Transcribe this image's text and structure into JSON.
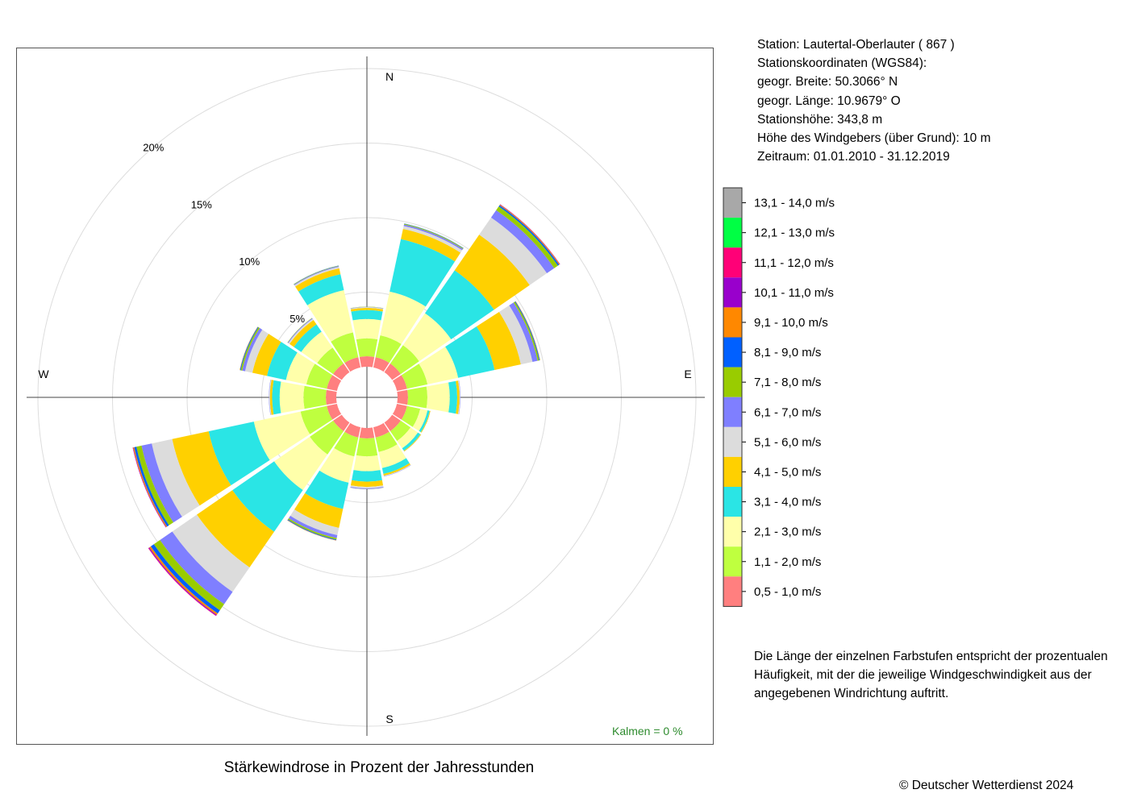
{
  "station": {
    "line1": "Station:  Lautertal-Oberlauter  ( 867 )",
    "line2": "Stationskoordinaten (WGS84):",
    "line3": "geogr. Breite: 50.3066° N",
    "line4": "geogr. Länge: 10.9679° O",
    "line5": "Stationshöhe: 343,8 m",
    "line6": "Höhe des Windgebers (über Grund): 10 m",
    "line7": "Zeitraum: 01.01.2010 - 31.12.2019"
  },
  "note": {
    "line1": "Die Länge der einzelnen Farbstufen entspricht der prozentualen",
    "line2": "Häufigkeit, mit der die jeweilige Windgeschwindigkeit aus der",
    "line3": "angegebenen Windrichtung auftritt."
  },
  "title": "Stärkewindrose in Prozent der Jahresstunden",
  "copyright": "© Deutscher Wetterdienst  2024",
  "kalmen": "Kalmen  =  0 %",
  "chart_data": {
    "type": "wind-rose",
    "title": "Stärkewindrose in Prozent der Jahresstunden",
    "directions": [
      "N",
      "NNE",
      "NE",
      "ENE",
      "E",
      "ESE",
      "SE",
      "SSE",
      "S",
      "SSW",
      "SW",
      "WSW",
      "W",
      "WNW",
      "NW",
      "NNW"
    ],
    "compass_labels": [
      "N",
      "E",
      "S",
      "W"
    ],
    "radial_ticks": [
      5,
      10,
      15,
      20
    ],
    "radial_tick_labels": [
      "5%",
      "10%",
      "15%",
      "20%"
    ],
    "unit": "%",
    "calm_percent": 0,
    "speed_classes": [
      {
        "label": "0,5 - 1,0 m/s",
        "color": "#ff7f7f"
      },
      {
        "label": "1,1 - 2,0 m/s",
        "color": "#bfff3f"
      },
      {
        "label": "2,1 - 3,0 m/s",
        "color": "#ffffaa"
      },
      {
        "label": "3,1 - 4,0 m/s",
        "color": "#2ae5e5"
      },
      {
        "label": "4,1 - 5,0 m/s",
        "color": "#ffd000"
      },
      {
        "label": "5,1 - 6,0 m/s",
        "color": "#dcdcdc"
      },
      {
        "label": "6,1 - 7,0 m/s",
        "color": "#7f7fff"
      },
      {
        "label": "7,1 - 8,0 m/s",
        "color": "#99cc00"
      },
      {
        "label": "8,1 - 9,0 m/s",
        "color": "#0060ff"
      },
      {
        "label": "9,1 - 10,0 m/s",
        "color": "#ff8800"
      },
      {
        "label": "10,1 - 11,0 m/s",
        "color": "#9900cc"
      },
      {
        "label": "11,1 - 12,0 m/s",
        "color": "#ff0077"
      },
      {
        "label": "12,1 - 13,0 m/s",
        "color": "#00ff44"
      },
      {
        "label": "13,1 - 14,0 m/s",
        "color": "#a8a8a8"
      }
    ],
    "frequencies": [
      [
        0.7,
        1.2,
        1.3,
        0.6,
        0.15,
        0.05,
        0.02,
        0.01,
        0,
        0,
        0,
        0,
        0,
        0
      ],
      [
        0.7,
        1.5,
        3.0,
        3.6,
        0.7,
        0.2,
        0.1,
        0.05,
        0.02,
        0,
        0,
        0,
        0,
        0
      ],
      [
        0.7,
        1.5,
        2.6,
        3.5,
        2.9,
        1.4,
        0.6,
        0.3,
        0.1,
        0.05,
        0.02,
        0.01,
        0,
        0
      ],
      [
        0.7,
        1.4,
        2.1,
        2.5,
        1.8,
        0.8,
        0.35,
        0.1,
        0.05,
        0.02,
        0,
        0,
        0,
        0
      ],
      [
        0.7,
        1.3,
        1.5,
        0.5,
        0.15,
        0.05,
        0.02,
        0,
        0,
        0,
        0,
        0,
        0,
        0
      ],
      [
        0.7,
        0.9,
        0.5,
        0.15,
        0.05,
        0.01,
        0,
        0,
        0,
        0,
        0,
        0,
        0,
        0
      ],
      [
        0.7,
        0.8,
        0.6,
        0.2,
        0.05,
        0.02,
        0,
        0,
        0,
        0,
        0,
        0,
        0,
        0
      ],
      [
        0.7,
        1.0,
        1.1,
        0.4,
        0.12,
        0.04,
        0.02,
        0,
        0,
        0,
        0,
        0,
        0,
        0
      ],
      [
        0.7,
        1.2,
        1.0,
        0.7,
        0.35,
        0.1,
        0.05,
        0.01,
        0,
        0,
        0,
        0,
        0,
        0
      ],
      [
        0.7,
        1.3,
        1.8,
        1.8,
        1.3,
        0.5,
        0.2,
        0.1,
        0.05,
        0.02,
        0,
        0,
        0,
        0
      ],
      [
        0.7,
        1.9,
        2.9,
        3.4,
        2.9,
        2.0,
        1.0,
        0.5,
        0.25,
        0.12,
        0.06,
        0.03,
        0,
        0
      ],
      [
        0.7,
        1.8,
        3.2,
        3.1,
        2.5,
        1.4,
        0.7,
        0.35,
        0.15,
        0.07,
        0.03,
        0.01,
        0,
        0
      ],
      [
        0.7,
        1.5,
        1.6,
        0.5,
        0.15,
        0.05,
        0.02,
        0,
        0,
        0,
        0,
        0,
        0,
        0
      ],
      [
        0.7,
        1.4,
        1.4,
        1.3,
        1.0,
        0.5,
        0.2,
        0.1,
        0.05,
        0.02,
        0,
        0,
        0,
        0
      ],
      [
        0.7,
        1.3,
        1.3,
        0.6,
        0.35,
        0.1,
        0.05,
        0.02,
        0,
        0,
        0,
        0,
        0,
        0
      ],
      [
        0.7,
        1.7,
        2.9,
        1.1,
        0.4,
        0.1,
        0.05,
        0.03,
        0.01,
        0,
        0,
        0,
        0,
        0
      ]
    ]
  }
}
